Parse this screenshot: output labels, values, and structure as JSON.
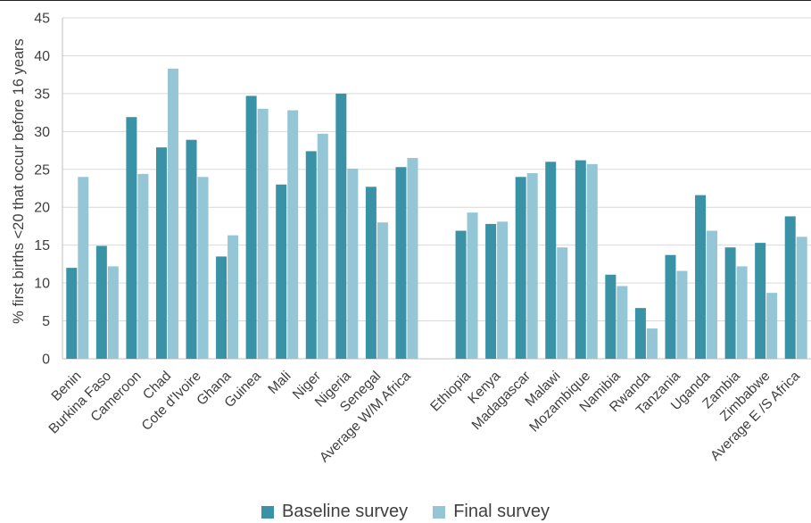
{
  "chart_data": {
    "type": "bar",
    "ylabel": "% first births <20 that occur before 16 years",
    "ylim": [
      0,
      45
    ],
    "yticks": [
      0,
      5,
      10,
      15,
      20,
      25,
      30,
      35,
      40,
      45
    ],
    "grid": true,
    "legend_position": "bottom",
    "categories": [
      "Benin",
      "Burkina Faso",
      "Cameroon",
      "Chad",
      "Cote d'Ivoire",
      "Ghana",
      "Guinea",
      "Mali",
      "Niger",
      "Nigeria",
      "Senegal",
      "Average W/M Africa",
      "",
      "Ethiopia",
      "Kenya",
      "Madagascar",
      "Malawi",
      "Mozambique",
      "Namibia",
      "Rwanda",
      "Tanzania",
      "Uganda",
      "Zambia",
      "Zimbabwe",
      "Average E /S Africa"
    ],
    "series": [
      {
        "name": "Baseline survey",
        "color": "#3a92a6",
        "values": [
          12.0,
          14.9,
          31.9,
          27.9,
          28.9,
          13.5,
          34.7,
          23.0,
          27.4,
          35.0,
          22.7,
          25.3,
          null,
          16.9,
          17.8,
          24.0,
          26.0,
          26.2,
          11.1,
          6.7,
          13.7,
          21.6,
          14.7,
          15.3,
          18.8
        ]
      },
      {
        "name": "Final survey",
        "color": "#94c6d6",
        "values": [
          24.0,
          12.2,
          24.4,
          38.3,
          24.0,
          16.3,
          33.0,
          32.8,
          29.7,
          25.1,
          18.0,
          26.5,
          null,
          19.3,
          18.1,
          24.5,
          14.7,
          25.7,
          9.6,
          4.0,
          11.6,
          16.9,
          12.2,
          8.7,
          16.1
        ]
      }
    ]
  },
  "colors": {
    "grid": "#d9d9d9",
    "axis": "#bfbfbf",
    "text": "#404040"
  }
}
